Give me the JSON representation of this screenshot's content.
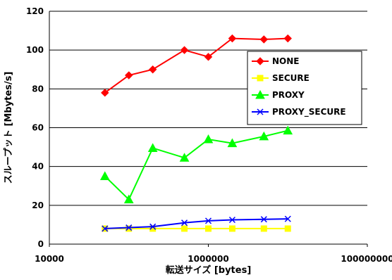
{
  "chart_data": {
    "type": "line",
    "title": "",
    "xlabel": "転送サイズ [bytes]",
    "ylabel": "スループット [Mbytes/s]",
    "xscale": "log",
    "xlim": [
      10000,
      100000000
    ],
    "ylim": [
      0,
      120
    ],
    "x_ticks": [
      10000,
      1000000,
      100000000
    ],
    "x_tick_labels": [
      "10000",
      "1000000",
      "100000000"
    ],
    "y_ticks": [
      0,
      20,
      40,
      60,
      80,
      100,
      120
    ],
    "y_tick_labels": [
      "0",
      "20",
      "40",
      "60",
      "80",
      "100",
      "120"
    ],
    "grid": "horizontal major",
    "legend_position": "right",
    "x": [
      50000,
      100000,
      200000,
      500000,
      1000000,
      2000000,
      5000000,
      10000000
    ],
    "series": [
      {
        "name": "NONE",
        "color": "#ff0000",
        "marker": "diamond",
        "values": [
          78,
          87,
          90,
          100,
          96.5,
          106,
          105.5,
          106
        ]
      },
      {
        "name": "SECURE",
        "color": "#ffff00",
        "marker": "square",
        "values": [
          8,
          8,
          8,
          8,
          8,
          8,
          8,
          8
        ]
      },
      {
        "name": "PROXY",
        "color": "#00ff00",
        "marker": "triangle",
        "values": [
          35,
          23,
          49.5,
          44.5,
          54,
          52,
          55.5,
          58.5
        ]
      },
      {
        "name": "PROXY_SECURE",
        "color": "#0000ff",
        "marker": "x",
        "values": [
          8,
          8.5,
          9,
          11,
          12,
          12.5,
          12.8,
          13
        ]
      }
    ]
  }
}
